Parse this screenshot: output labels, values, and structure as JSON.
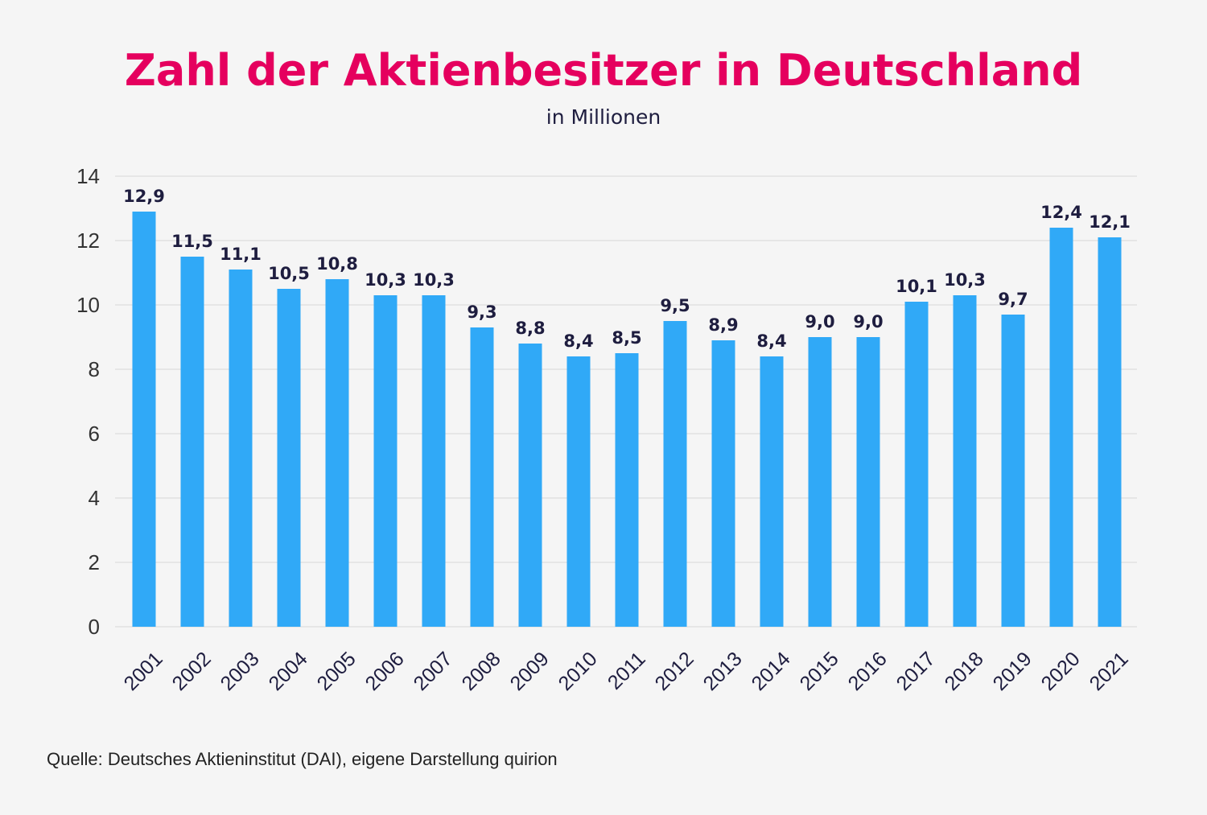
{
  "title": "Zahl der Aktienbesitzer in Deutschland",
  "subtitle": "in Millionen",
  "source": "Quelle: Deutsches Aktieninstitut (DAI), eigene Darstellung quirion",
  "colors": {
    "bar": "#30a9f7",
    "title": "#e5005e",
    "text": "#1e1d3f",
    "grid": "#d6d6d6",
    "background": "#f5f5f5"
  },
  "chart_data": {
    "type": "bar",
    "categories": [
      "2001",
      "2002",
      "2003",
      "2004",
      "2005",
      "2006",
      "2007",
      "2008",
      "2009",
      "2010",
      "2011",
      "2012",
      "2013",
      "2014",
      "2015",
      "2016",
      "2017",
      "2018",
      "2019",
      "2020",
      "2021"
    ],
    "values": [
      12.9,
      11.5,
      11.1,
      10.5,
      10.8,
      10.3,
      10.3,
      9.3,
      8.8,
      8.4,
      8.5,
      9.5,
      8.9,
      8.4,
      9.0,
      9.0,
      10.1,
      10.3,
      9.7,
      12.4,
      12.1
    ],
    "data_labels": [
      "12,9",
      "11,5",
      "11,1",
      "10,5",
      "10,8",
      "10,3",
      "10,3",
      "9,3",
      "8,8",
      "8,4",
      "8,5",
      "9,5",
      "8,9",
      "8,4",
      "9,0",
      "9,0",
      "10,1",
      "10,3",
      "9,7",
      "12,4",
      "12,1"
    ],
    "title": "Zahl der Aktienbesitzer in Deutschland",
    "subtitle": "in Millionen",
    "xlabel": "",
    "ylabel": "",
    "ylim": [
      0,
      14
    ],
    "yticks": [
      0,
      2,
      4,
      6,
      8,
      10,
      12,
      14
    ],
    "grid": true,
    "legend": "none"
  }
}
